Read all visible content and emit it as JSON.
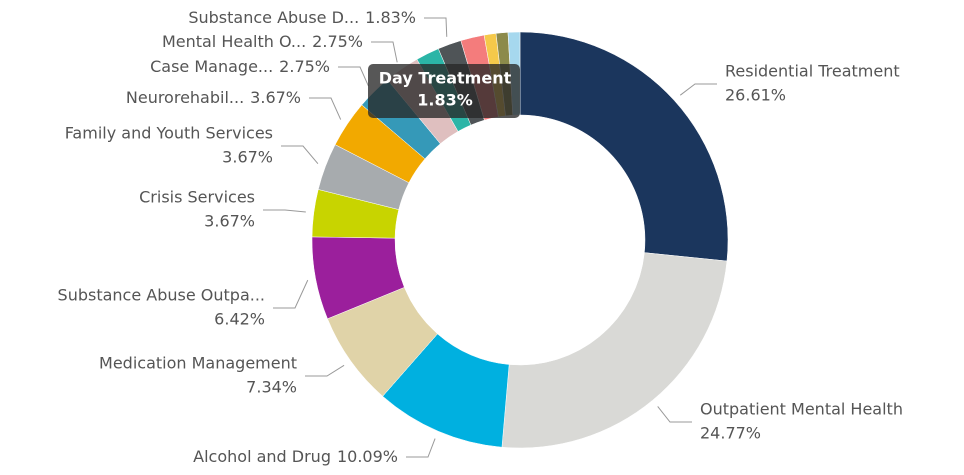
{
  "chart_data": {
    "type": "donut",
    "categories": [
      "Residential Treatment",
      "Outpatient Mental Health",
      "Alcohol and Drug",
      "Medication Management",
      "Substance Abuse Outpa...",
      "Crisis Services",
      "Family and Youth Services",
      "Neurorehabil...",
      "Case Manage...",
      "Mental Health O...",
      "Day Treatment",
      "Substance Abuse D...",
      null,
      null,
      null,
      null
    ],
    "values": [
      26.61,
      24.77,
      10.09,
      7.34,
      6.42,
      3.67,
      3.67,
      3.67,
      2.75,
      2.75,
      1.83,
      1.83,
      1.83,
      0.92,
      0.92,
      0.92
    ],
    "value_labels": [
      "26.61%",
      "24.77%",
      "10.09%",
      "7.34%",
      "6.42%",
      "3.67%",
      "3.67%",
      "3.67%",
      "2.75%",
      "2.75%",
      "1.83%",
      "1.83%",
      null,
      null,
      null,
      null
    ],
    "colors": [
      "#1b365d",
      "#d9d9d6",
      "#00b0e0",
      "#e0d3a8",
      "#9b1f9c",
      "#c8d400",
      "#a7abae",
      "#f2a900",
      "#3599b8",
      "#dfbfbf",
      "#2bb5a7",
      "#4f5457",
      "#f47c7c",
      "#f5c94a",
      "#8c8a4a",
      "#a6d8ee"
    ],
    "tooltip": 10
  }
}
